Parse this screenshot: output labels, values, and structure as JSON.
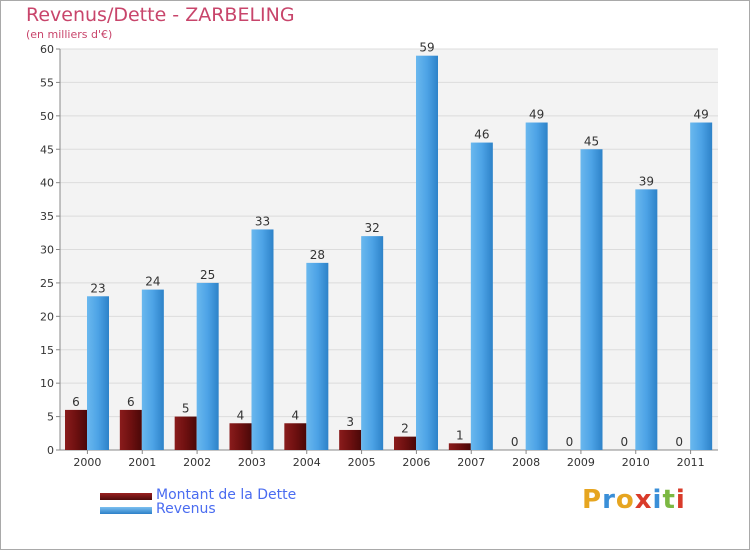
{
  "title": "Revenus/Dette - ZARBELING",
  "subtitle": "(en milliers d'€)",
  "brand": {
    "text": "Proxiti",
    "letter_colors": [
      "#e6a520",
      "#3a8fd8",
      "#e6a520",
      "#d93b2a",
      "#3a8fd8",
      "#7cb842",
      "#d93b2a"
    ]
  },
  "chart_data": {
    "type": "bar",
    "title": "Revenus/Dette - ZARBELING",
    "subtitle": "(en milliers d'€)",
    "categories": [
      "2000",
      "2001",
      "2002",
      "2003",
      "2004",
      "2005",
      "2006",
      "2007",
      "2008",
      "2009",
      "2010",
      "2011"
    ],
    "series": [
      {
        "name": "Montant de la Dette",
        "color": "#7a1414",
        "values": [
          6,
          6,
          5,
          4,
          4,
          3,
          2,
          1,
          0,
          0,
          0,
          0
        ]
      },
      {
        "name": "Revenus",
        "color": "#4da3e6",
        "values": [
          23,
          24,
          25,
          33,
          28,
          32,
          59,
          46,
          49,
          45,
          39,
          49
        ]
      }
    ],
    "ylim": [
      0,
      60
    ],
    "yticks": [
      0,
      5,
      10,
      15,
      20,
      25,
      30,
      35,
      40,
      45,
      50,
      55,
      60
    ],
    "grid": true,
    "legend": "bottom-left",
    "xlabel": "",
    "ylabel": ""
  }
}
